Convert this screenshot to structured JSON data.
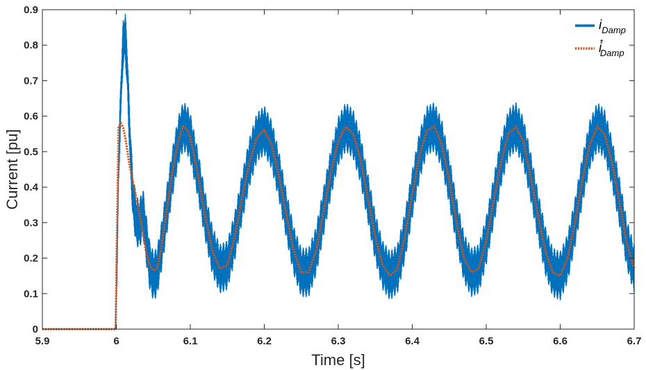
{
  "chart_data": {
    "type": "line",
    "xlabel": "Time [s]",
    "ylabel": "Current [pu]",
    "xlim": [
      5.9,
      6.7
    ],
    "ylim": [
      0,
      0.9
    ],
    "xticks": [
      "5.9",
      "6",
      "6.1",
      "6.2",
      "6.3",
      "6.4",
      "6.5",
      "6.6",
      "6.7"
    ],
    "yticks": [
      "0",
      "0.1",
      "0.2",
      "0.3",
      "0.4",
      "0.5",
      "0.6",
      "0.7",
      "0.8",
      "0.9"
    ],
    "grid": false,
    "legend_position": "top-right",
    "colors": {
      "i_damp": "#0072BD",
      "i_damp_ref": "#D95319",
      "axis": "#262626"
    },
    "series": [
      {
        "name": "i_Damp",
        "legend_main": "i",
        "legend_sub": "Damp",
        "style": "solid",
        "ripple_amplitude": 0.07,
        "x": [
          5.9,
          5.999,
          6.001,
          6.003,
          6.006,
          6.009,
          6.012,
          6.015,
          6.018,
          6.022,
          6.027,
          6.032,
          6.036,
          6.04,
          6.045,
          6.05,
          6.055,
          6.06,
          6.065,
          6.07,
          6.075,
          6.08,
          6.085,
          6.09,
          6.095,
          6.1,
          6.11,
          6.12,
          6.13,
          6.14,
          6.15,
          6.16,
          6.17,
          6.18,
          6.19,
          6.2,
          6.21,
          6.22,
          6.23,
          6.24,
          6.25,
          6.26,
          6.27,
          6.28,
          6.29,
          6.3,
          6.31,
          6.32,
          6.33,
          6.34,
          6.35,
          6.36,
          6.37,
          6.38,
          6.39,
          6.4,
          6.41,
          6.42,
          6.43,
          6.44,
          6.45,
          6.46,
          6.47,
          6.48,
          6.49,
          6.5,
          6.51,
          6.52,
          6.53,
          6.54,
          6.55,
          6.56,
          6.57,
          6.58,
          6.59,
          6.6,
          6.61,
          6.62,
          6.63,
          6.64,
          6.65,
          6.66,
          6.67,
          6.68,
          6.69,
          6.7
        ],
        "y": [
          0.0,
          0.0,
          0.2,
          0.45,
          0.65,
          0.8,
          0.83,
          0.72,
          0.55,
          0.38,
          0.3,
          0.3,
          0.33,
          0.26,
          0.18,
          0.15,
          0.16,
          0.22,
          0.29,
          0.36,
          0.43,
          0.49,
          0.54,
          0.57,
          0.565,
          0.54,
          0.44,
          0.32,
          0.22,
          0.17,
          0.18,
          0.26,
          0.37,
          0.47,
          0.54,
          0.56,
          0.52,
          0.43,
          0.32,
          0.22,
          0.16,
          0.16,
          0.22,
          0.33,
          0.44,
          0.53,
          0.57,
          0.55,
          0.48,
          0.37,
          0.26,
          0.18,
          0.15,
          0.17,
          0.26,
          0.38,
          0.49,
          0.56,
          0.57,
          0.52,
          0.42,
          0.3,
          0.2,
          0.16,
          0.17,
          0.25,
          0.36,
          0.47,
          0.55,
          0.57,
          0.53,
          0.43,
          0.32,
          0.22,
          0.16,
          0.15,
          0.2,
          0.3,
          0.42,
          0.52,
          0.57,
          0.55,
          0.47,
          0.36,
          0.24,
          0.17
        ]
      },
      {
        "name": "i*_Damp",
        "legend_main": "i",
        "legend_sup": "*",
        "legend_sub": "Damp",
        "style": "dotted",
        "x": [
          5.9,
          5.999,
          6.001,
          6.003,
          6.006,
          6.009,
          6.012,
          6.015,
          6.018,
          6.022,
          6.027,
          6.032,
          6.036,
          6.04,
          6.045,
          6.05,
          6.055,
          6.06,
          6.065,
          6.07,
          6.075,
          6.08,
          6.085,
          6.09,
          6.095,
          6.1,
          6.11,
          6.12,
          6.13,
          6.14,
          6.15,
          6.16,
          6.17,
          6.18,
          6.19,
          6.2,
          6.21,
          6.22,
          6.23,
          6.24,
          6.25,
          6.26,
          6.27,
          6.28,
          6.29,
          6.3,
          6.31,
          6.32,
          6.33,
          6.34,
          6.35,
          6.36,
          6.37,
          6.38,
          6.39,
          6.4,
          6.41,
          6.42,
          6.43,
          6.44,
          6.45,
          6.46,
          6.47,
          6.48,
          6.49,
          6.5,
          6.51,
          6.52,
          6.53,
          6.54,
          6.55,
          6.56,
          6.57,
          6.58,
          6.59,
          6.6,
          6.61,
          6.62,
          6.63,
          6.64,
          6.65,
          6.66,
          6.67,
          6.68,
          6.69,
          6.7
        ],
        "y": [
          0.0,
          0.0,
          0.3,
          0.57,
          0.58,
          0.57,
          0.54,
          0.5,
          0.46,
          0.42,
          0.37,
          0.32,
          0.27,
          0.22,
          0.18,
          0.165,
          0.17,
          0.22,
          0.29,
          0.36,
          0.43,
          0.49,
          0.54,
          0.57,
          0.565,
          0.54,
          0.44,
          0.32,
          0.22,
          0.17,
          0.18,
          0.26,
          0.37,
          0.47,
          0.54,
          0.56,
          0.52,
          0.43,
          0.32,
          0.22,
          0.16,
          0.16,
          0.22,
          0.33,
          0.44,
          0.53,
          0.57,
          0.55,
          0.48,
          0.37,
          0.26,
          0.18,
          0.15,
          0.17,
          0.26,
          0.38,
          0.49,
          0.56,
          0.57,
          0.52,
          0.42,
          0.3,
          0.2,
          0.16,
          0.17,
          0.25,
          0.36,
          0.47,
          0.55,
          0.57,
          0.53,
          0.43,
          0.32,
          0.22,
          0.16,
          0.15,
          0.2,
          0.3,
          0.42,
          0.52,
          0.57,
          0.55,
          0.47,
          0.36,
          0.24,
          0.17
        ]
      }
    ]
  }
}
